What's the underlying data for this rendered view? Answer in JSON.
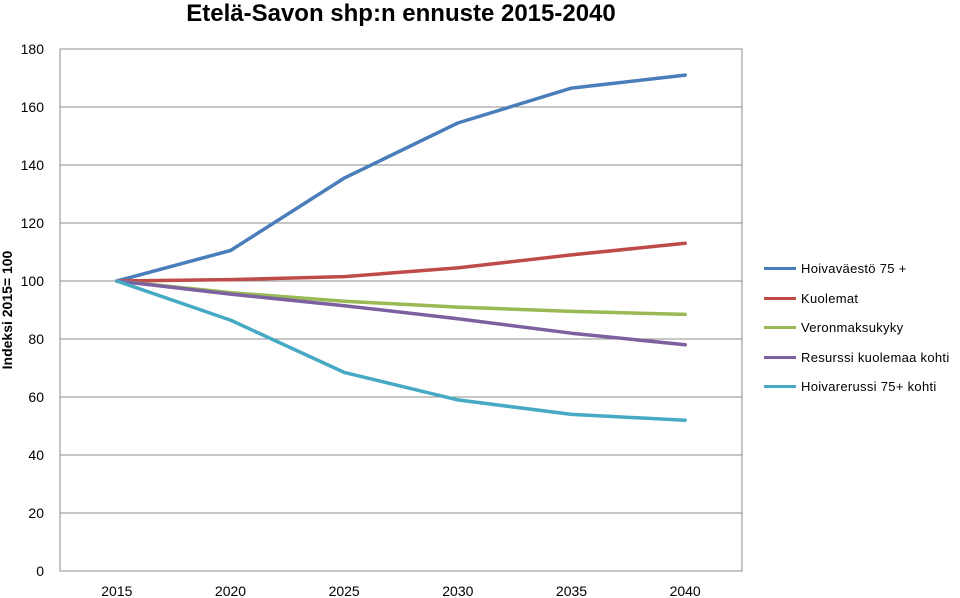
{
  "chart_data": {
    "type": "line",
    "title": "Etelä-Savon shp:n ennuste 2015-2040",
    "ylabel": "Indeksi 2015= 100",
    "xlabel": "",
    "ylim": [
      0,
      180
    ],
    "yticks": [
      "0",
      "20",
      "40",
      "60",
      "80",
      "100",
      "120",
      "140",
      "160",
      "180"
    ],
    "categories": [
      "2015",
      "2020",
      "2025",
      "2030",
      "2035",
      "2040"
    ],
    "grid": true,
    "legend_position": "right",
    "series": [
      {
        "name": "Hoivaväestö 75 +",
        "color": "#4a7ebb",
        "values": [
          100,
          110.5,
          135.5,
          154.5,
          166.5,
          171
        ]
      },
      {
        "name": "Kuolemat",
        "color": "#be4b48",
        "values": [
          100,
          100.5,
          101.5,
          104.5,
          109,
          113
        ]
      },
      {
        "name": "Veronmaksukyky",
        "color": "#98b954",
        "values": [
          100,
          96,
          93,
          91,
          89.5,
          88.5
        ]
      },
      {
        "name": "Resurssi kuolemaa kohti",
        "color": "#7d60a0",
        "values": [
          100,
          95.5,
          91.5,
          87,
          82,
          78
        ]
      },
      {
        "name": "Hoivarerussi 75+ kohti",
        "color": "#46aac5",
        "values": [
          100,
          86.5,
          68.5,
          59,
          54,
          52
        ]
      }
    ]
  }
}
